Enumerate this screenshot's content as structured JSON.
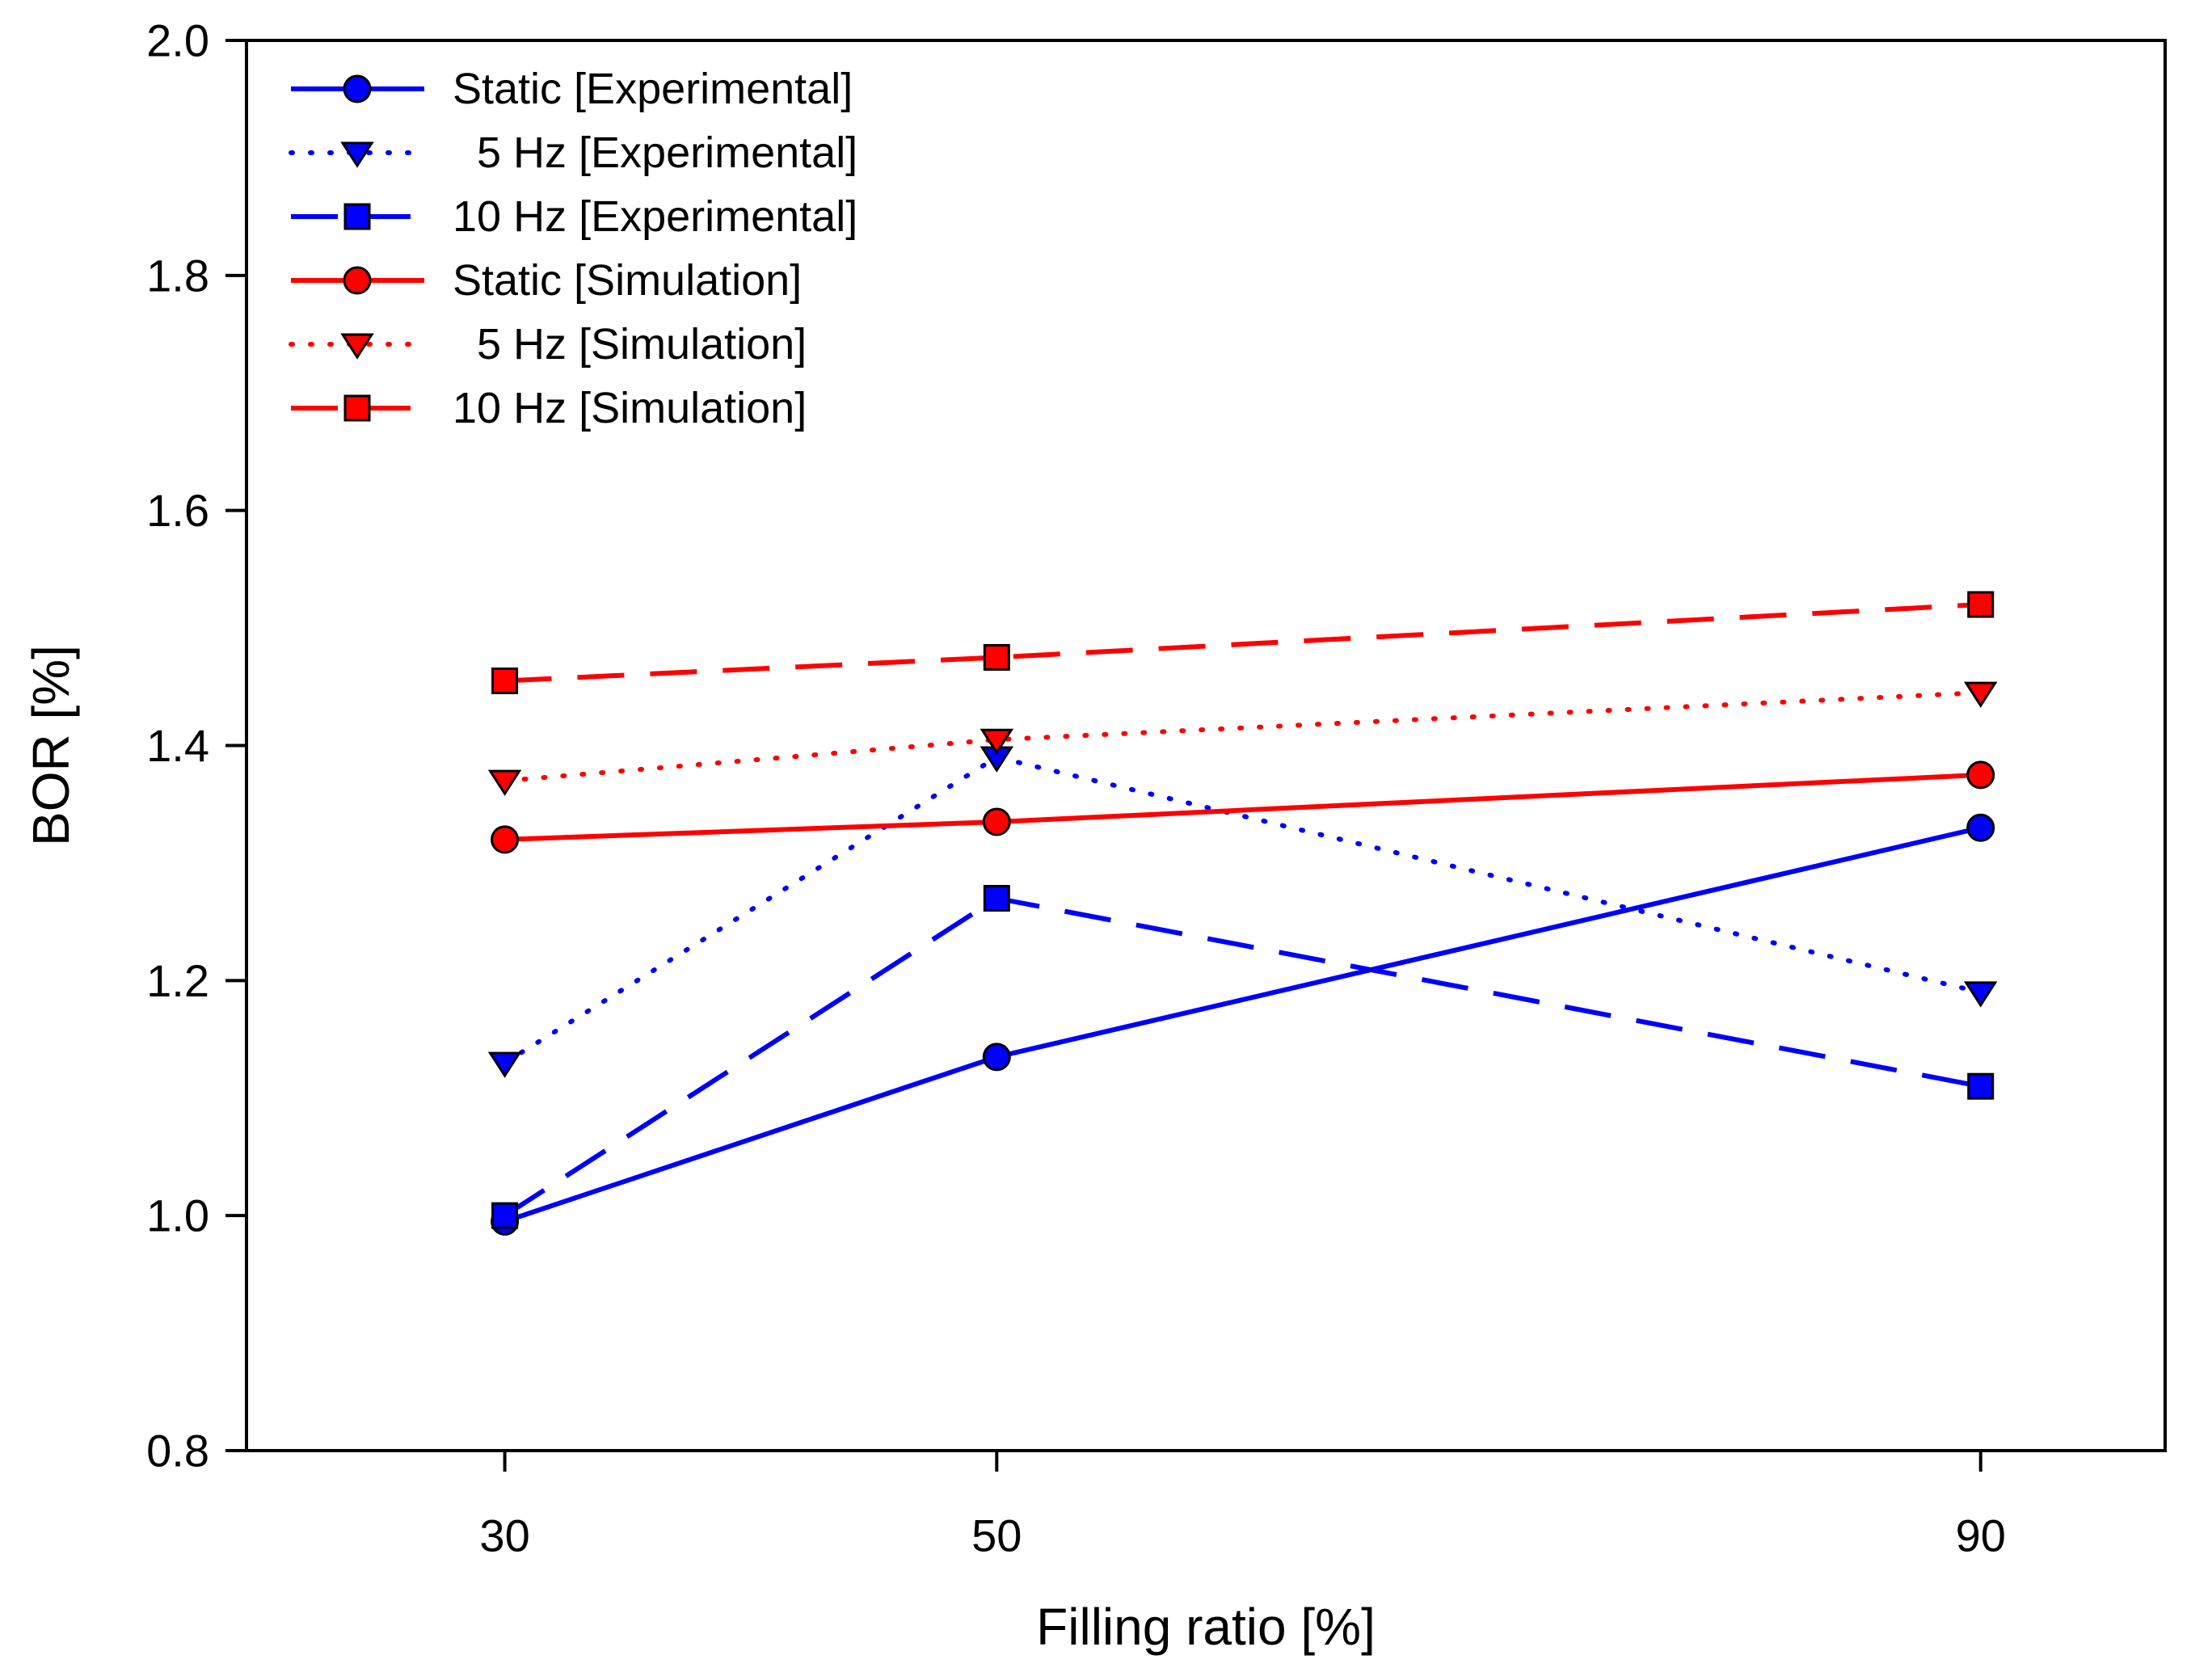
{
  "chart_data": {
    "type": "line",
    "title": "",
    "xlabel": "Filling ratio [%]",
    "ylabel": "BOR [%]",
    "x": [
      30,
      50,
      90
    ],
    "xlim": [
      19.5,
      97.5
    ],
    "ylim": [
      0.8,
      2.0
    ],
    "grid": false,
    "legend_position": "top-left",
    "xticks": {
      "values": [
        30,
        50,
        90
      ],
      "labels": [
        "30",
        "50",
        "90"
      ]
    },
    "yticks": {
      "values": [
        0.8,
        1.0,
        1.2,
        1.4,
        1.6,
        1.8,
        2.0
      ],
      "labels": [
        "0.8",
        "1.0",
        "1.2",
        "1.4",
        "1.6",
        "1.8",
        "2.0"
      ]
    },
    "colors": {
      "experimental": "#0000ff",
      "simulation": "#ff0000",
      "marker_edge": "#000000",
      "axis": "#000000"
    },
    "series": [
      {
        "name": "Static [Experimental]",
        "legend_label": "Static [Experimental]",
        "color": "#0000ff",
        "line_style": "solid",
        "marker": "circle",
        "values": [
          0.995,
          1.135,
          1.33
        ]
      },
      {
        "name": "5 Hz [Experimental]",
        "legend_label": "  5 Hz [Experimental]",
        "color": "#0000ff",
        "line_style": "dotted",
        "marker": "triangle-down",
        "values": [
          1.13,
          1.39,
          1.19
        ]
      },
      {
        "name": "10 Hz [Experimental]",
        "legend_label": "10 Hz [Experimental]",
        "color": "#0000ff",
        "line_style": "dashed",
        "marker": "square",
        "values": [
          1.0,
          1.27,
          1.11
        ]
      },
      {
        "name": "Static [Simulation]",
        "legend_label": "Static [Simulation]",
        "color": "#ff0000",
        "line_style": "solid",
        "marker": "circle",
        "values": [
          1.32,
          1.335,
          1.375
        ]
      },
      {
        "name": "5 Hz [Simulation]",
        "legend_label": "  5 Hz [Simulation]",
        "color": "#ff0000",
        "line_style": "dotted",
        "marker": "triangle-down",
        "values": [
          1.37,
          1.405,
          1.445
        ]
      },
      {
        "name": "10 Hz [Simulation]",
        "legend_label": "10 Hz [Simulation]",
        "color": "#ff0000",
        "line_style": "dashed",
        "marker": "square",
        "values": [
          1.455,
          1.475,
          1.52
        ]
      }
    ]
  }
}
